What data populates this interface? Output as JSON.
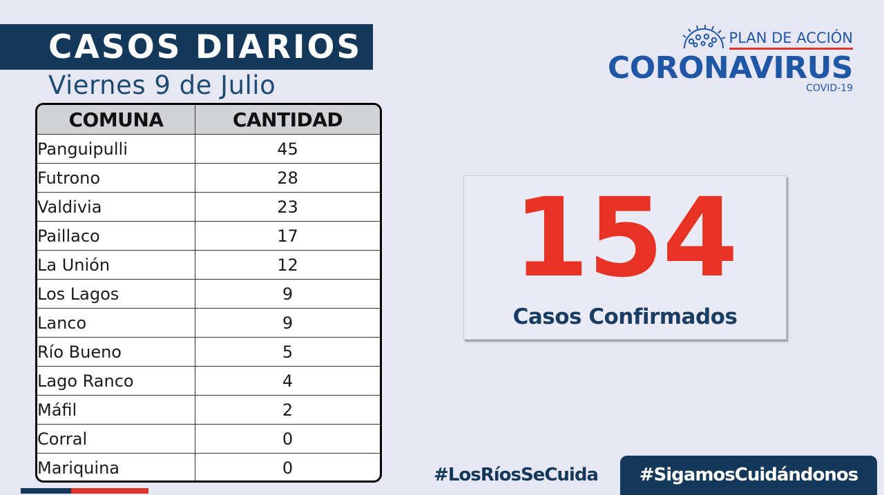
{
  "header": {
    "title": "CASOS DIARIOS",
    "date": "Viernes 9 de Julio"
  },
  "logo": {
    "icon": "coronavirus-icon",
    "plan": "PLAN DE ACCIÓN",
    "name": "CORONAVIRUS",
    "sub": "COVID-19"
  },
  "table": {
    "headers": [
      "COMUNA",
      "CANTIDAD"
    ],
    "rows": [
      {
        "comuna": "Panguipulli",
        "cantidad": "45"
      },
      {
        "comuna": "Futrono",
        "cantidad": "28"
      },
      {
        "comuna": "Valdivia",
        "cantidad": "23"
      },
      {
        "comuna": "Paillaco",
        "cantidad": "17"
      },
      {
        "comuna": "La Unión",
        "cantidad": "12"
      },
      {
        "comuna": "Los Lagos",
        "cantidad": "9"
      },
      {
        "comuna": "Lanco",
        "cantidad": "9"
      },
      {
        "comuna": "Río Bueno",
        "cantidad": "5"
      },
      {
        "comuna": "Lago Ranco",
        "cantidad": "4"
      },
      {
        "comuna": "Máfil",
        "cantidad": "2"
      },
      {
        "comuna": "Corral",
        "cantidad": "0"
      },
      {
        "comuna": "Mariquina",
        "cantidad": "0"
      }
    ]
  },
  "total": {
    "number": "154",
    "label": "Casos Confirmados"
  },
  "hashtags": {
    "first": "#LosRíosSeCuida",
    "second": "#SigamosCuidándonos"
  },
  "colors": {
    "navy": "#14385a",
    "brand_blue": "#1f56a5",
    "accent_red": "#e63323",
    "background": "#e6e7f2"
  }
}
